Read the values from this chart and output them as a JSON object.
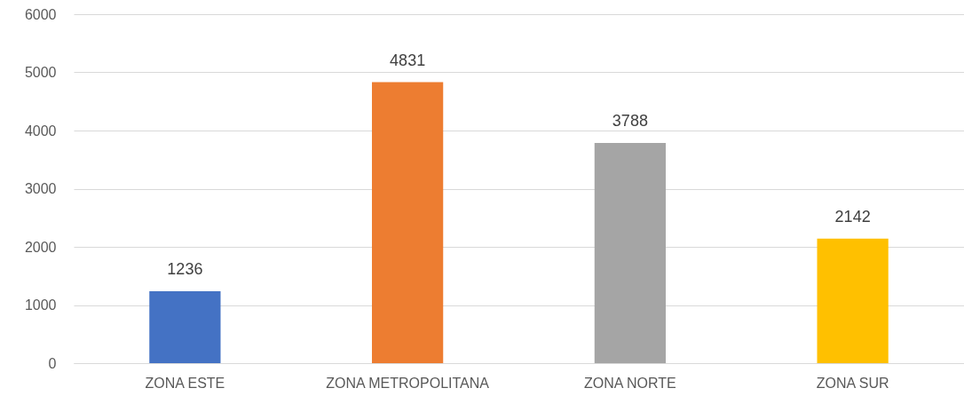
{
  "chart_data": {
    "type": "bar",
    "categories": [
      "ZONA ESTE",
      "ZONA METROPOLITANA",
      "ZONA NORTE",
      "ZONA SUR"
    ],
    "values": [
      1236,
      4831,
      3788,
      2142
    ],
    "colors": [
      "#4472c4",
      "#ed7d31",
      "#a5a5a5",
      "#ffc000"
    ],
    "ylim": [
      0,
      6000
    ],
    "yticks": [
      0,
      1000,
      2000,
      3000,
      4000,
      5000,
      6000
    ],
    "grid": "y",
    "data_labels": true
  }
}
